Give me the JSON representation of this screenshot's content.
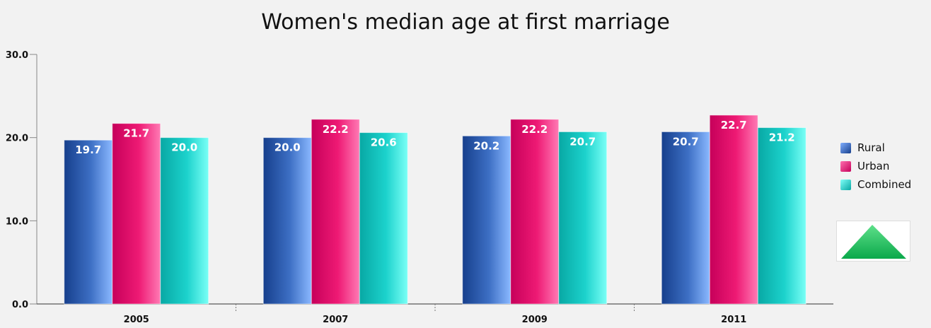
{
  "chart_data": {
    "type": "bar",
    "title": "Women's median age at first marriage",
    "xlabel": "",
    "ylabel": "",
    "categories": [
      "2005",
      "2007",
      "2009",
      "2011"
    ],
    "series": [
      {
        "name": "Rural",
        "values": [
          19.7,
          20.0,
          20.2,
          20.7
        ],
        "color": "#2a5aa8"
      },
      {
        "name": "Urban",
        "values": [
          21.7,
          22.2,
          22.2,
          22.7
        ],
        "color": "#e8106a"
      },
      {
        "name": "Combined",
        "values": [
          20.0,
          20.6,
          20.7,
          21.2
        ],
        "color": "#18c8c4"
      }
    ],
    "ylim": [
      0,
      30
    ],
    "yticks": [
      "0.0",
      "10.0",
      "20.0",
      "30.0"
    ],
    "grid": false,
    "legend_position": "right"
  },
  "icons": {
    "scroll_widget": "triangle-up-icon"
  }
}
